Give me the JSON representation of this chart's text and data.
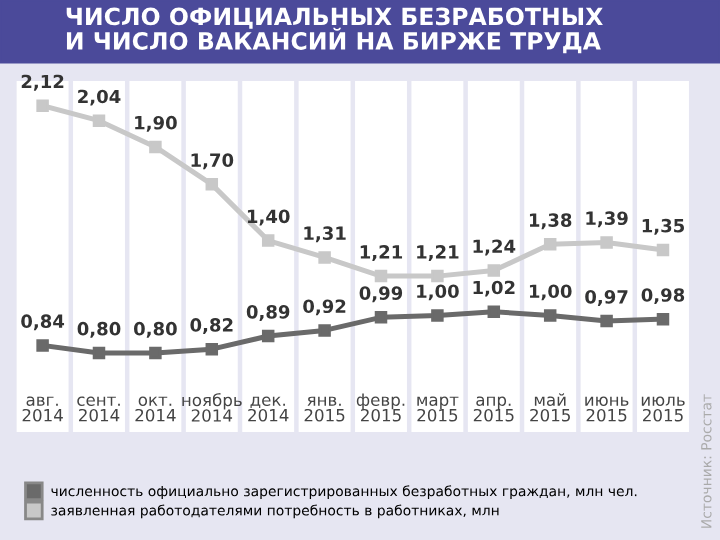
{
  "chart_data": {
    "type": "line",
    "title": "ЧИСЛО ОФИЦИАЛЬНЫХ БЕЗРАБОТНЫХ\nИ ЧИСЛО ВАКАНСИЙ НА БИРЖЕ ТРУДА",
    "categories": [
      "авг.\n2014",
      "сент.\n2014",
      "окт.\n2014",
      "ноябрь\n2014",
      "дек.\n2014",
      "янв.\n2015",
      "февр.\n2015",
      "март\n2015",
      "апр.\n2015",
      "май\n2015",
      "июнь\n2015",
      "июль\n2015"
    ],
    "series": [
      {
        "name": "численность официально зарегистрированных безработных граждан, млн чел.",
        "color": "#6a6a6a",
        "values": [
          0.84,
          0.8,
          0.8,
          0.82,
          0.89,
          0.92,
          0.99,
          1.0,
          1.02,
          1.0,
          0.97,
          0.98
        ],
        "value_labels": [
          "0,84",
          "0,80",
          "0,80",
          "0,82",
          "0,89",
          "0,92",
          "0,99",
          "1,00",
          "1,02",
          "1,00",
          "0,97",
          "0,98"
        ]
      },
      {
        "name": "заявленная работодателями потребность в работниках, млн",
        "color": "#c8c8c8",
        "values": [
          2.12,
          2.04,
          1.9,
          1.7,
          1.4,
          1.31,
          1.21,
          1.21,
          1.24,
          1.38,
          1.39,
          1.35
        ],
        "value_labels": [
          "2,12",
          "2,04",
          "1,90",
          "1,70",
          "1,40",
          "1,31",
          "1,21",
          "1,21",
          "1,24",
          "1,38",
          "1,39",
          "1,35"
        ]
      }
    ],
    "legend": "bottom",
    "marker": "square",
    "line_style": "solid",
    "grid": false,
    "annotations": [
      "Источник: Росстат"
    ]
  }
}
